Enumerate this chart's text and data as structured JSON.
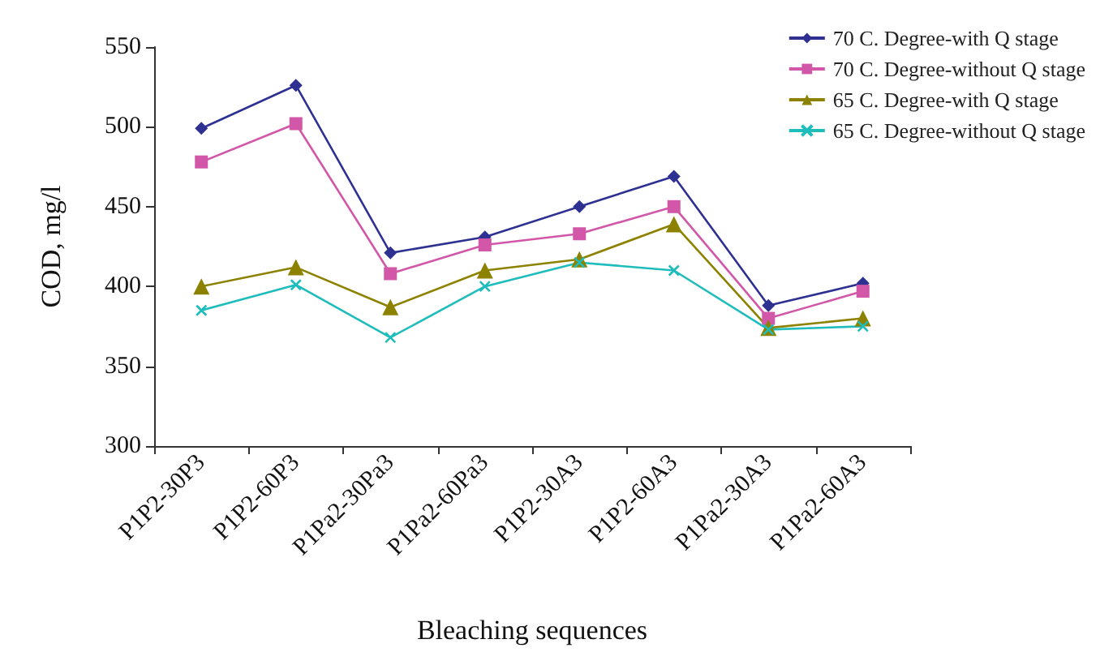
{
  "chart_data": {
    "type": "line",
    "xlabel": "Bleaching sequences",
    "ylabel": "COD, mg/l",
    "categories": [
      "P1P2-30P3",
      "P1P2-60P3",
      "P1Pa2-30Pa3",
      "P1Pa2-60Pa3",
      "P1P2-30A3",
      "P1P2-60A3",
      "P1Pa2-30A3",
      "P1Pa2-60A3"
    ],
    "series": [
      {
        "name": "70 C. Degree-with Q stage",
        "color": "#2e3192",
        "marker": "diamond",
        "values": [
          499,
          526,
          421,
          431,
          450,
          469,
          388,
          402
        ]
      },
      {
        "name": "70 C. Degree-without Q stage",
        "color": "#d257a8",
        "marker": "square",
        "values": [
          478,
          502,
          408,
          426,
          433,
          450,
          380,
          397
        ]
      },
      {
        "name": "65 C. Degree-with Q stage",
        "color": "#8c8200",
        "marker": "triangle",
        "values": [
          400,
          412,
          387,
          410,
          417,
          439,
          374,
          380
        ]
      },
      {
        "name": "65 C. Degree-without Q stage",
        "color": "#1fbcbc",
        "marker": "cross",
        "values": [
          385,
          401,
          368,
          400,
          415,
          410,
          373,
          375
        ]
      }
    ],
    "ylim": [
      300,
      550
    ],
    "yticks": [
      300,
      350,
      400,
      450,
      500,
      550
    ],
    "grid": false,
    "legend": "top right",
    "line_style": "solid"
  }
}
